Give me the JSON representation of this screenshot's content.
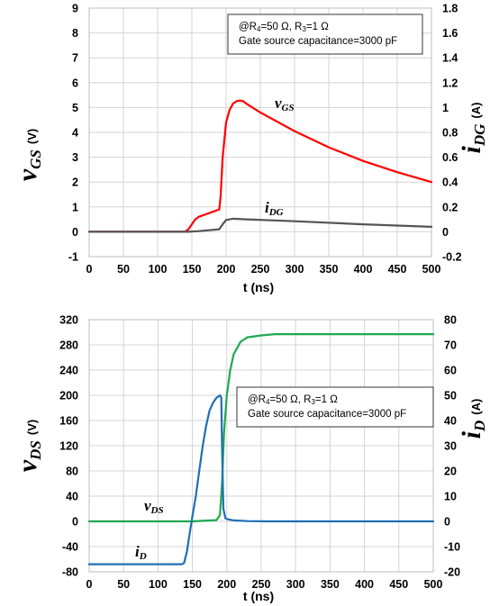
{
  "chart_data": [
    {
      "type": "line",
      "id": "top",
      "xlabel": "t (ns)",
      "xlim": [
        0,
        500
      ],
      "x_ticks": [
        0,
        50,
        100,
        150,
        200,
        250,
        300,
        350,
        400,
        450,
        500
      ],
      "ylim": [
        -1,
        9
      ],
      "y_ticks": [
        -1,
        0,
        1,
        2,
        3,
        4,
        5,
        6,
        7,
        8,
        9
      ],
      "y2lim": [
        -0.2,
        1.8
      ],
      "y2_ticks": [
        "-0.2",
        "0",
        "0.2",
        "0.4",
        "0.6",
        "0.8",
        "1",
        "1.2",
        "1.4",
        "1.6",
        "1.8"
      ],
      "ylabel": {
        "main": "v",
        "sub": "GS",
        "unit": "(V)"
      },
      "y2label": {
        "main": "i",
        "sub": "DG",
        "unit": "(A)"
      },
      "annotation": {
        "line1": {
          "pre": "@R",
          "sub1": "4",
          "mid": "=50  Ω, R",
          "sub2": "3",
          "post": "=1  Ω"
        },
        "line2": "Gate source capacitance=3000 pF"
      },
      "grid": true,
      "series": [
        {
          "name_main": "v",
          "name_sub": "GS",
          "axis": "left",
          "color": "#ff0000",
          "x": [
            0,
            140,
            145,
            150,
            155,
            160,
            170,
            180,
            190,
            192,
            195,
            200,
            205,
            210,
            215,
            220,
            225,
            230,
            250,
            300,
            350,
            400,
            450,
            500
          ],
          "y": [
            0,
            0,
            0.1,
            0.3,
            0.5,
            0.6,
            0.7,
            0.8,
            0.9,
            1.4,
            3.0,
            4.4,
            4.9,
            5.15,
            5.25,
            5.28,
            5.25,
            5.15,
            4.8,
            4.05,
            3.4,
            2.85,
            2.4,
            2.0
          ]
        },
        {
          "name_main": "i",
          "name_sub": "DG",
          "axis": "right",
          "color": "#555555",
          "x": [
            0,
            145,
            160,
            180,
            190,
            195,
            200,
            210,
            230,
            300,
            400,
            500
          ],
          "y": [
            0,
            0,
            0.005,
            0.015,
            0.02,
            0.06,
            0.095,
            0.105,
            0.1,
            0.085,
            0.06,
            0.04
          ]
        }
      ]
    },
    {
      "type": "line",
      "id": "bottom",
      "xlabel": "t (ns)",
      "xlim": [
        0,
        500
      ],
      "x_ticks": [
        0,
        50,
        100,
        150,
        200,
        250,
        300,
        350,
        400,
        450,
        500
      ],
      "ylim": [
        -80,
        320
      ],
      "y_ticks": [
        -80,
        -40,
        0,
        40,
        80,
        120,
        160,
        200,
        240,
        280,
        320
      ],
      "y2lim": [
        -20,
        80
      ],
      "y2_ticks": [
        "-20",
        "-10",
        "0",
        "10",
        "20",
        "30",
        "40",
        "50",
        "60",
        "70",
        "80"
      ],
      "ylabel": {
        "main": "v",
        "sub": "DS",
        "unit": "(V)"
      },
      "y2label": {
        "main": "i",
        "sub": "D",
        "unit": "(A)"
      },
      "annotation": {
        "line1": {
          "pre": "@R",
          "sub1": "4",
          "mid": "=50  Ω, R",
          "sub2": "3",
          "post": "=1  Ω"
        },
        "line2": "Gate source capacitance=3000 pF"
      },
      "grid": true,
      "series": [
        {
          "name_main": "v",
          "name_sub": "DS",
          "axis": "left",
          "color": "#1fa84f",
          "x": [
            0,
            150,
            185,
            190,
            193,
            196,
            200,
            205,
            210,
            220,
            230,
            250,
            270,
            300,
            400,
            500
          ],
          "y": [
            0,
            0,
            2,
            10,
            60,
            140,
            200,
            240,
            265,
            285,
            292,
            295,
            297,
            297,
            297,
            297
          ]
        },
        {
          "name_main": "i",
          "name_sub": "D",
          "axis": "right",
          "color": "#1f6fb5",
          "x": [
            0,
            135,
            138,
            142,
            146,
            150,
            155,
            160,
            165,
            170,
            175,
            180,
            185,
            190,
            192,
            193,
            195,
            198,
            202,
            210,
            230,
            260,
            300,
            500
          ],
          "y": [
            -17,
            -17,
            -16.5,
            -12,
            -5,
            2,
            10,
            20,
            30,
            38,
            44,
            47,
            49,
            50,
            49,
            30,
            5,
            1.2,
            0.8,
            0.4,
            0.1,
            0,
            0,
            0
          ]
        }
      ]
    }
  ]
}
